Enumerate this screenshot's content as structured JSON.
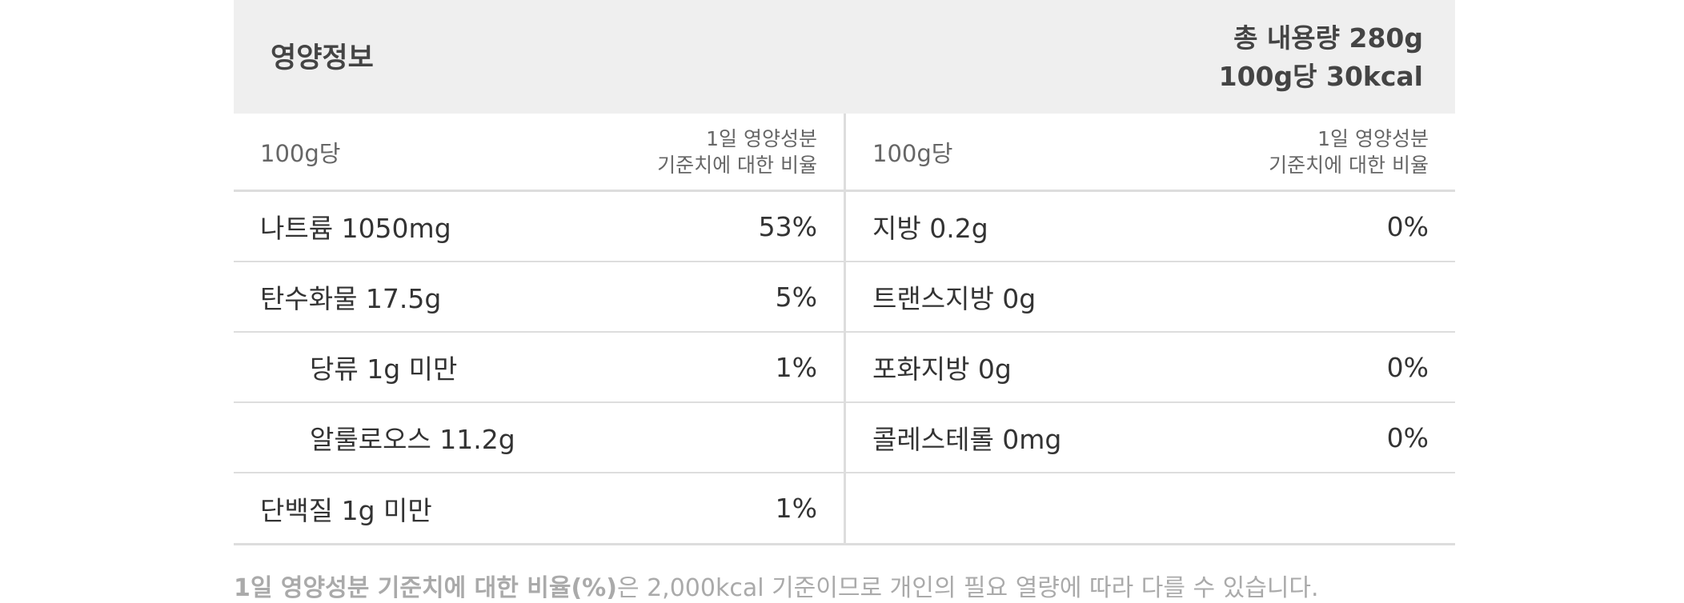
{
  "header": {
    "title": "영양정보",
    "total_content": "총 내용량 280g",
    "calories": "100g당 30kcal"
  },
  "columns": [
    {
      "basis": "100g당",
      "dv_label_line1": "1일 영양성분",
      "dv_label_line2": "기준치에 대한 비율",
      "rows": [
        {
          "name": "나트륨 1050mg",
          "percent": "53%"
        },
        {
          "name": "탄수화물 17.5g",
          "percent": "5%"
        },
        {
          "name": "당류 1g 미만",
          "percent": "1%"
        },
        {
          "name": "알룰로오스 11.2g",
          "percent": ""
        },
        {
          "name": "단백질 1g 미만",
          "percent": "1%"
        }
      ]
    },
    {
      "basis": "100g당",
      "dv_label_line1": "1일 영양성분",
      "dv_label_line2": "기준치에 대한 비율",
      "rows": [
        {
          "name": "지방 0.2g",
          "percent": "0%"
        },
        {
          "name": "트랜스지방 0g",
          "percent": ""
        },
        {
          "name": "포화지방 0g",
          "percent": "0%"
        },
        {
          "name": "콜레스테롤 0mg",
          "percent": "0%"
        },
        {
          "name": "",
          "percent": ""
        }
      ]
    }
  ],
  "footnote": {
    "bold_part": "1일 영양성분 기준치에 대한 비율(%)",
    "rest": "은 2,000kcal 기준이므로 개인의 필요 열량에 따라 다를 수 있습니다."
  }
}
